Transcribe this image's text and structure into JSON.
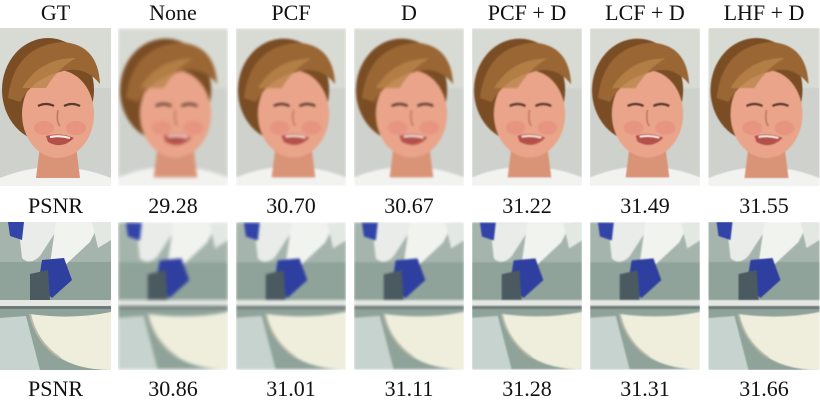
{
  "columns": [
    "GT",
    "None",
    "PCF",
    "D",
    "PCF + D",
    "LCF + D",
    "LHF + D"
  ],
  "rows": [
    {
      "content": "face",
      "values": [
        "PSNR",
        "29.28",
        "30.70",
        "30.67",
        "31.22",
        "31.49",
        "31.55"
      ]
    },
    {
      "content": "machine",
      "values": [
        "PSNR",
        "30.86",
        "31.01",
        "31.11",
        "31.28",
        "31.31",
        "31.66"
      ]
    }
  ],
  "colors": {
    "face_bg": "#cfd2cc",
    "skin": "#e9a48a",
    "hair": "#8a5a2e",
    "machine_bg": "#8fa39a",
    "metal": "#d9dcd6",
    "blue": "#2f3fa0",
    "cream": "#efeedd"
  }
}
